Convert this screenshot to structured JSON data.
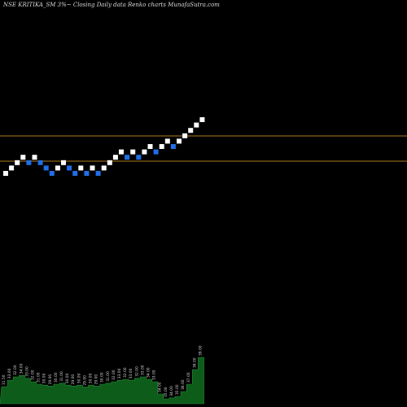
{
  "header": {
    "symbol": "NSE KRITIKA_SM 3%",
    "desc": "~ Closing Daily data  Renko  charts MunafaSutra.com"
  },
  "chart_data": {
    "type": "renko",
    "title": "NSE KRITIKA_SM 3%~ Closing Daily data Renko charts MunafaSutra.com",
    "colors": {
      "up": "#ffffff",
      "down": "#1f6fe6",
      "resistance": "#b07a20",
      "volume": "#0d5c1a",
      "volume_label": "#cfcfcf"
    },
    "reference_lines": [
      1,
      2
    ],
    "bricks": [
      {
        "i": 0,
        "level": 0,
        "dir": "up"
      },
      {
        "i": 1,
        "level": 1,
        "dir": "up"
      },
      {
        "i": 2,
        "level": 2,
        "dir": "up"
      },
      {
        "i": 3,
        "level": 3,
        "dir": "up"
      },
      {
        "i": 4,
        "level": 2,
        "dir": "down"
      },
      {
        "i": 5,
        "level": 3,
        "dir": "up"
      },
      {
        "i": 6,
        "level": 2,
        "dir": "down"
      },
      {
        "i": 7,
        "level": 1,
        "dir": "down"
      },
      {
        "i": 8,
        "level": 0,
        "dir": "down"
      },
      {
        "i": 9,
        "level": 1,
        "dir": "up"
      },
      {
        "i": 10,
        "level": 2,
        "dir": "up"
      },
      {
        "i": 11,
        "level": 1,
        "dir": "down"
      },
      {
        "i": 12,
        "level": 0,
        "dir": "down"
      },
      {
        "i": 13,
        "level": 1,
        "dir": "up"
      },
      {
        "i": 14,
        "level": 0,
        "dir": "down"
      },
      {
        "i": 15,
        "level": 1,
        "dir": "up"
      },
      {
        "i": 16,
        "level": 0,
        "dir": "down"
      },
      {
        "i": 17,
        "level": 1,
        "dir": "up"
      },
      {
        "i": 18,
        "level": 2,
        "dir": "up"
      },
      {
        "i": 19,
        "level": 3,
        "dir": "up"
      },
      {
        "i": 20,
        "level": 4,
        "dir": "up"
      },
      {
        "i": 21,
        "level": 3,
        "dir": "down"
      },
      {
        "i": 22,
        "level": 4,
        "dir": "up"
      },
      {
        "i": 23,
        "level": 3,
        "dir": "down"
      },
      {
        "i": 24,
        "level": 4,
        "dir": "up"
      },
      {
        "i": 25,
        "level": 5,
        "dir": "up"
      },
      {
        "i": 26,
        "level": 4,
        "dir": "down"
      },
      {
        "i": 27,
        "level": 5,
        "dir": "up"
      },
      {
        "i": 28,
        "level": 6,
        "dir": "up"
      },
      {
        "i": 29,
        "level": 5,
        "dir": "down"
      },
      {
        "i": 30,
        "level": 6,
        "dir": "up"
      },
      {
        "i": 31,
        "level": 7,
        "dir": "up"
      },
      {
        "i": 32,
        "level": 8,
        "dir": "up"
      },
      {
        "i": 33,
        "level": 9,
        "dir": "up"
      },
      {
        "i": 34,
        "level": 10,
        "dir": "up"
      }
    ],
    "volume_labels": [
      "31.50",
      "33.00",
      "32.00",
      "34.00",
      "33.00",
      "32.00",
      "31.00",
      "30.00",
      "29.00",
      "30.00",
      "31.00",
      "30.00",
      "29.00",
      "30.00",
      "29.00",
      "30.00",
      "29.00",
      "30.00",
      "31.00",
      "32.00",
      "33.00",
      "32.00",
      "33.00",
      "32.00",
      "33.00",
      "34.00",
      "33.00",
      "34.00",
      "35.00",
      "34.00",
      "35.00",
      "36.00",
      "37.00",
      "38.00",
      "39.00"
    ],
    "volumes": [
      0.35,
      0.48,
      0.55,
      0.58,
      0.52,
      0.45,
      0.4,
      0.38,
      0.36,
      0.4,
      0.42,
      0.38,
      0.36,
      0.38,
      0.34,
      0.38,
      0.36,
      0.4,
      0.42,
      0.45,
      0.48,
      0.5,
      0.48,
      0.52,
      0.55,
      0.5,
      0.45,
      0.2,
      0.1,
      0.12,
      0.15,
      0.25,
      0.4,
      0.7,
      0.95
    ]
  }
}
